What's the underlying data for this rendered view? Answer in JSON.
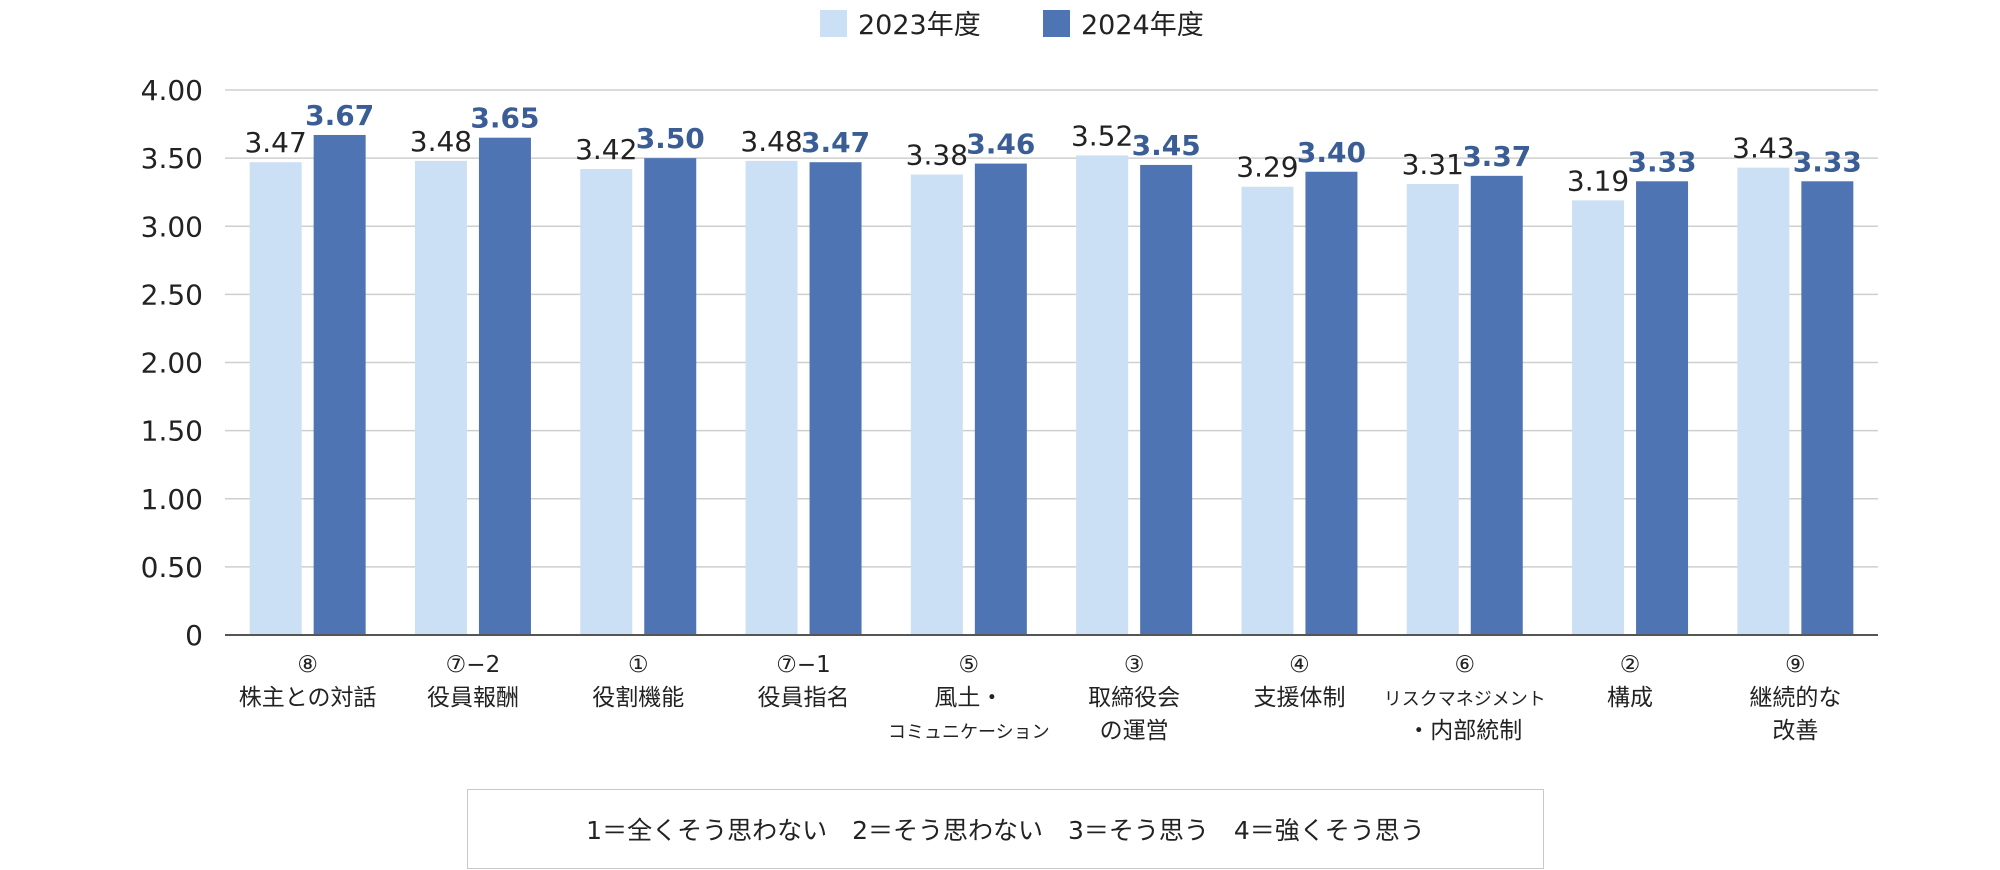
{
  "chart_data": {
    "type": "bar",
    "categories": [
      [
        "⑧",
        "株主との対話"
      ],
      [
        "⑦−2",
        "役員報酬"
      ],
      [
        "①",
        "役割機能"
      ],
      [
        "⑦−1",
        "役員指名"
      ],
      [
        "⑤",
        "風土・",
        "コミュニケーション"
      ],
      [
        "③",
        "取締役会",
        "の運営"
      ],
      [
        "④",
        "支援体制"
      ],
      [
        "⑥",
        "リスクマネジメント",
        "・内部統制"
      ],
      [
        "②",
        "構成"
      ],
      [
        "⑨",
        "継続的な",
        "改善"
      ]
    ],
    "series": [
      {
        "name": "2023年度",
        "color": "#cce0f5",
        "values": [
          3.47,
          3.48,
          3.42,
          3.48,
          3.38,
          3.52,
          3.29,
          3.31,
          3.19,
          3.43
        ],
        "labels": [
          "3.47",
          "3.48",
          "3.42",
          "3.48",
          "3.38",
          "3.52",
          "3.29",
          "3.31",
          "3.19",
          "3.43"
        ]
      },
      {
        "name": "2024年度",
        "color": "#4f74b4",
        "values": [
          3.67,
          3.65,
          3.5,
          3.47,
          3.46,
          3.45,
          3.4,
          3.37,
          3.33,
          3.33
        ],
        "labels": [
          "3.67",
          "3.65",
          "3.50",
          "3.47",
          "3.46",
          "3.45",
          "3.40",
          "3.37",
          "3.33",
          "3.33"
        ]
      }
    ],
    "ylim": [
      0,
      4
    ],
    "yticks": [
      "0",
      "0.50",
      "1.00",
      "1.50",
      "2.00",
      "2.50",
      "3.00",
      "3.50",
      "4.00"
    ],
    "legend_position": "top-center",
    "grid": true,
    "label_color_2024": "#3a5d96",
    "axis_color": "#555555",
    "grid_color": "#cfcfcf"
  },
  "scale_note": "1＝全くそう思わない　2＝そう思わない　3＝そう思う　4＝強くそう思う"
}
